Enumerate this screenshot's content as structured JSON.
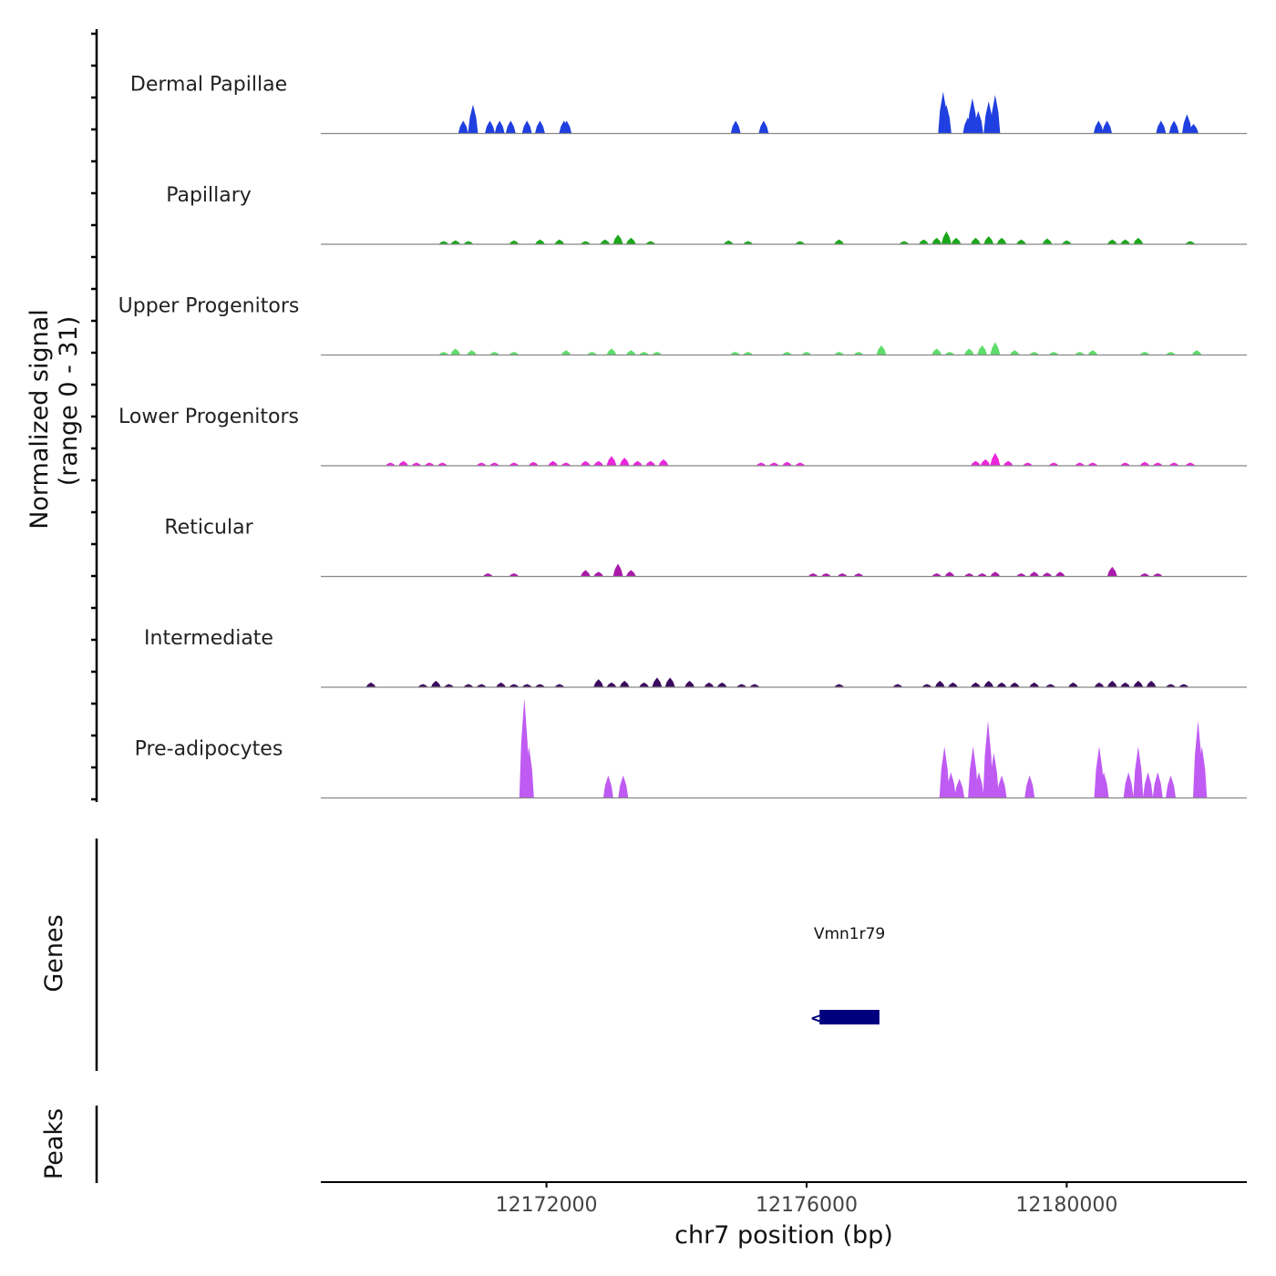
{
  "chart_data": {
    "type": "area",
    "title": "",
    "ylabel_line1": "Normalized signal",
    "ylabel_line2": "(range 0 - 31)",
    "genes_label": "Genes",
    "peaks_label": "Peaks",
    "xlabel": "chr7 position (bp)",
    "xlim": [
      12168530,
      12182770
    ],
    "ylim": [
      0,
      31
    ],
    "x_ticks": [
      12172000,
      12176000,
      12180000
    ],
    "x_tick_labels": [
      "12172000",
      "12176000",
      "12180000"
    ],
    "tracks": [
      {
        "name": "Dermal Papillae",
        "color": "#1f3fe0",
        "peaks": [
          [
            12170720,
            4
          ],
          [
            12170870,
            9
          ],
          [
            12171130,
            4
          ],
          [
            12171280,
            4
          ],
          [
            12171450,
            4
          ],
          [
            12171700,
            4
          ],
          [
            12171900,
            4
          ],
          [
            12172270,
            4
          ],
          [
            12172310,
            4
          ],
          [
            12174910,
            4
          ],
          [
            12175340,
            4
          ],
          [
            12178100,
            13
          ],
          [
            12178150,
            9
          ],
          [
            12178480,
            5
          ],
          [
            12178550,
            11
          ],
          [
            12178640,
            7
          ],
          [
            12178800,
            10
          ],
          [
            12178900,
            12
          ],
          [
            12180490,
            4
          ],
          [
            12180620,
            4
          ],
          [
            12181450,
            4
          ],
          [
            12181650,
            4
          ],
          [
            12181850,
            6
          ],
          [
            12181950,
            3
          ]
        ]
      },
      {
        "name": "Papillary",
        "color": "#1aa81a",
        "peaks": [
          [
            12170420,
            1
          ],
          [
            12170600,
            1.2
          ],
          [
            12170800,
            1
          ],
          [
            12171500,
            1.2
          ],
          [
            12171900,
            1.5
          ],
          [
            12172200,
            1.5
          ],
          [
            12172600,
            1
          ],
          [
            12172900,
            1.5
          ],
          [
            12173100,
            3
          ],
          [
            12173300,
            2
          ],
          [
            12173600,
            1
          ],
          [
            12174800,
            1.2
          ],
          [
            12175100,
            1
          ],
          [
            12175900,
            1
          ],
          [
            12176500,
            1.5
          ],
          [
            12177500,
            1
          ],
          [
            12177800,
            1.5
          ],
          [
            12178000,
            2
          ],
          [
            12178150,
            4
          ],
          [
            12178300,
            2
          ],
          [
            12178600,
            2
          ],
          [
            12178800,
            2.5
          ],
          [
            12179000,
            2
          ],
          [
            12179300,
            1.5
          ],
          [
            12179700,
            1.8
          ],
          [
            12180000,
            1.2
          ],
          [
            12180700,
            1.5
          ],
          [
            12180900,
            1.5
          ],
          [
            12181100,
            2
          ],
          [
            12181900,
            1
          ]
        ]
      },
      {
        "name": "Upper Progenitors",
        "color": "#5edc6a",
        "peaks": [
          [
            12170420,
            1
          ],
          [
            12170600,
            2
          ],
          [
            12170850,
            1.5
          ],
          [
            12171200,
            1
          ],
          [
            12171500,
            1
          ],
          [
            12172300,
            1.5
          ],
          [
            12172700,
            1
          ],
          [
            12173000,
            2
          ],
          [
            12173300,
            1.5
          ],
          [
            12173500,
            1
          ],
          [
            12173700,
            1
          ],
          [
            12174900,
            1
          ],
          [
            12175100,
            1
          ],
          [
            12175700,
            1
          ],
          [
            12176000,
            1
          ],
          [
            12176500,
            1
          ],
          [
            12176800,
            1
          ],
          [
            12177150,
            3
          ],
          [
            12178000,
            2
          ],
          [
            12178200,
            1
          ],
          [
            12178500,
            2
          ],
          [
            12178700,
            3
          ],
          [
            12178900,
            4
          ],
          [
            12179200,
            1.5
          ],
          [
            12179500,
            1
          ],
          [
            12179800,
            1
          ],
          [
            12180200,
            1
          ],
          [
            12180400,
            1.5
          ],
          [
            12181200,
            1
          ],
          [
            12181600,
            1
          ],
          [
            12182000,
            1.5
          ]
        ]
      },
      {
        "name": "Lower Progenitors",
        "color": "#ea26dc",
        "peaks": [
          [
            12169600,
            1
          ],
          [
            12169800,
            1.5
          ],
          [
            12170000,
            1
          ],
          [
            12170200,
            1
          ],
          [
            12170400,
            1
          ],
          [
            12171000,
            1
          ],
          [
            12171200,
            1
          ],
          [
            12171500,
            1
          ],
          [
            12171800,
            1.2
          ],
          [
            12172100,
            1.5
          ],
          [
            12172300,
            1
          ],
          [
            12172600,
            1.5
          ],
          [
            12172800,
            1.5
          ],
          [
            12173000,
            3
          ],
          [
            12173200,
            2.5
          ],
          [
            12173400,
            1.5
          ],
          [
            12173600,
            1.5
          ],
          [
            12173800,
            2
          ],
          [
            12175300,
            1
          ],
          [
            12175500,
            1
          ],
          [
            12175700,
            1.2
          ],
          [
            12175900,
            1
          ],
          [
            12178600,
            1.5
          ],
          [
            12178750,
            2
          ],
          [
            12178900,
            4
          ],
          [
            12179100,
            1.5
          ],
          [
            12179400,
            1
          ],
          [
            12179800,
            1
          ],
          [
            12180200,
            1
          ],
          [
            12180400,
            1
          ],
          [
            12180900,
            1
          ],
          [
            12181200,
            1.2
          ],
          [
            12181400,
            1
          ],
          [
            12181650,
            1
          ],
          [
            12181900,
            1
          ]
        ]
      },
      {
        "name": "Reticular",
        "color": "#aa1aaa",
        "peaks": [
          [
            12171100,
            1
          ],
          [
            12171500,
            1
          ],
          [
            12172600,
            2
          ],
          [
            12172800,
            1.5
          ],
          [
            12173100,
            4
          ],
          [
            12173300,
            2
          ],
          [
            12176100,
            1
          ],
          [
            12176300,
            1
          ],
          [
            12176550,
            1
          ],
          [
            12176800,
            1
          ],
          [
            12178000,
            1
          ],
          [
            12178200,
            1.5
          ],
          [
            12178500,
            1
          ],
          [
            12178700,
            1
          ],
          [
            12178900,
            1.5
          ],
          [
            12179300,
            1
          ],
          [
            12179500,
            1.5
          ],
          [
            12179700,
            1.2
          ],
          [
            12179900,
            1.5
          ],
          [
            12180700,
            3
          ],
          [
            12181200,
            1
          ],
          [
            12181400,
            1
          ]
        ]
      },
      {
        "name": "Intermediate",
        "color": "#3b0a5e",
        "peaks": [
          [
            12169300,
            1.5
          ],
          [
            12170100,
            1
          ],
          [
            12170300,
            2
          ],
          [
            12170500,
            1
          ],
          [
            12170800,
            1
          ],
          [
            12171000,
            1
          ],
          [
            12171300,
            1.5
          ],
          [
            12171500,
            1
          ],
          [
            12171700,
            1
          ],
          [
            12171900,
            1
          ],
          [
            12172200,
            1
          ],
          [
            12172800,
            2.5
          ],
          [
            12173000,
            1.5
          ],
          [
            12173200,
            2
          ],
          [
            12173500,
            1.5
          ],
          [
            12173700,
            3
          ],
          [
            12173900,
            3
          ],
          [
            12174200,
            2
          ],
          [
            12174500,
            1.5
          ],
          [
            12174700,
            1.5
          ],
          [
            12175000,
            1
          ],
          [
            12175200,
            1
          ],
          [
            12176500,
            1
          ],
          [
            12177400,
            1
          ],
          [
            12177850,
            1
          ],
          [
            12178050,
            2
          ],
          [
            12178250,
            1.5
          ],
          [
            12178600,
            1.5
          ],
          [
            12178800,
            2
          ],
          [
            12179000,
            1.5
          ],
          [
            12179200,
            1.5
          ],
          [
            12179500,
            1.5
          ],
          [
            12179750,
            1
          ],
          [
            12180100,
            1.5
          ],
          [
            12180500,
            1.5
          ],
          [
            12180700,
            2
          ],
          [
            12180900,
            1.5
          ],
          [
            12181100,
            2
          ],
          [
            12181300,
            2
          ],
          [
            12181600,
            1
          ],
          [
            12181800,
            1
          ]
        ]
      },
      {
        "name": "Pre-adipocytes",
        "color": "#bf5bf3",
        "peaks": [
          [
            12171660,
            31
          ],
          [
            12171730,
            16
          ],
          [
            12172950,
            7
          ],
          [
            12173180,
            7
          ],
          [
            12178120,
            16
          ],
          [
            12178220,
            8
          ],
          [
            12178350,
            6
          ],
          [
            12178560,
            16
          ],
          [
            12178650,
            8
          ],
          [
            12178790,
            24
          ],
          [
            12178880,
            14
          ],
          [
            12179000,
            7
          ],
          [
            12179430,
            7
          ],
          [
            12180500,
            16
          ],
          [
            12180570,
            8
          ],
          [
            12180950,
            8
          ],
          [
            12181100,
            16
          ],
          [
            12181250,
            8
          ],
          [
            12181400,
            8
          ],
          [
            12181600,
            7
          ],
          [
            12182020,
            24
          ],
          [
            12182080,
            16
          ]
        ]
      }
    ],
    "gene": {
      "name": "Vmn1r79",
      "start": 12176200,
      "end": 12177120,
      "strand": "-",
      "color": "#00007f"
    }
  }
}
